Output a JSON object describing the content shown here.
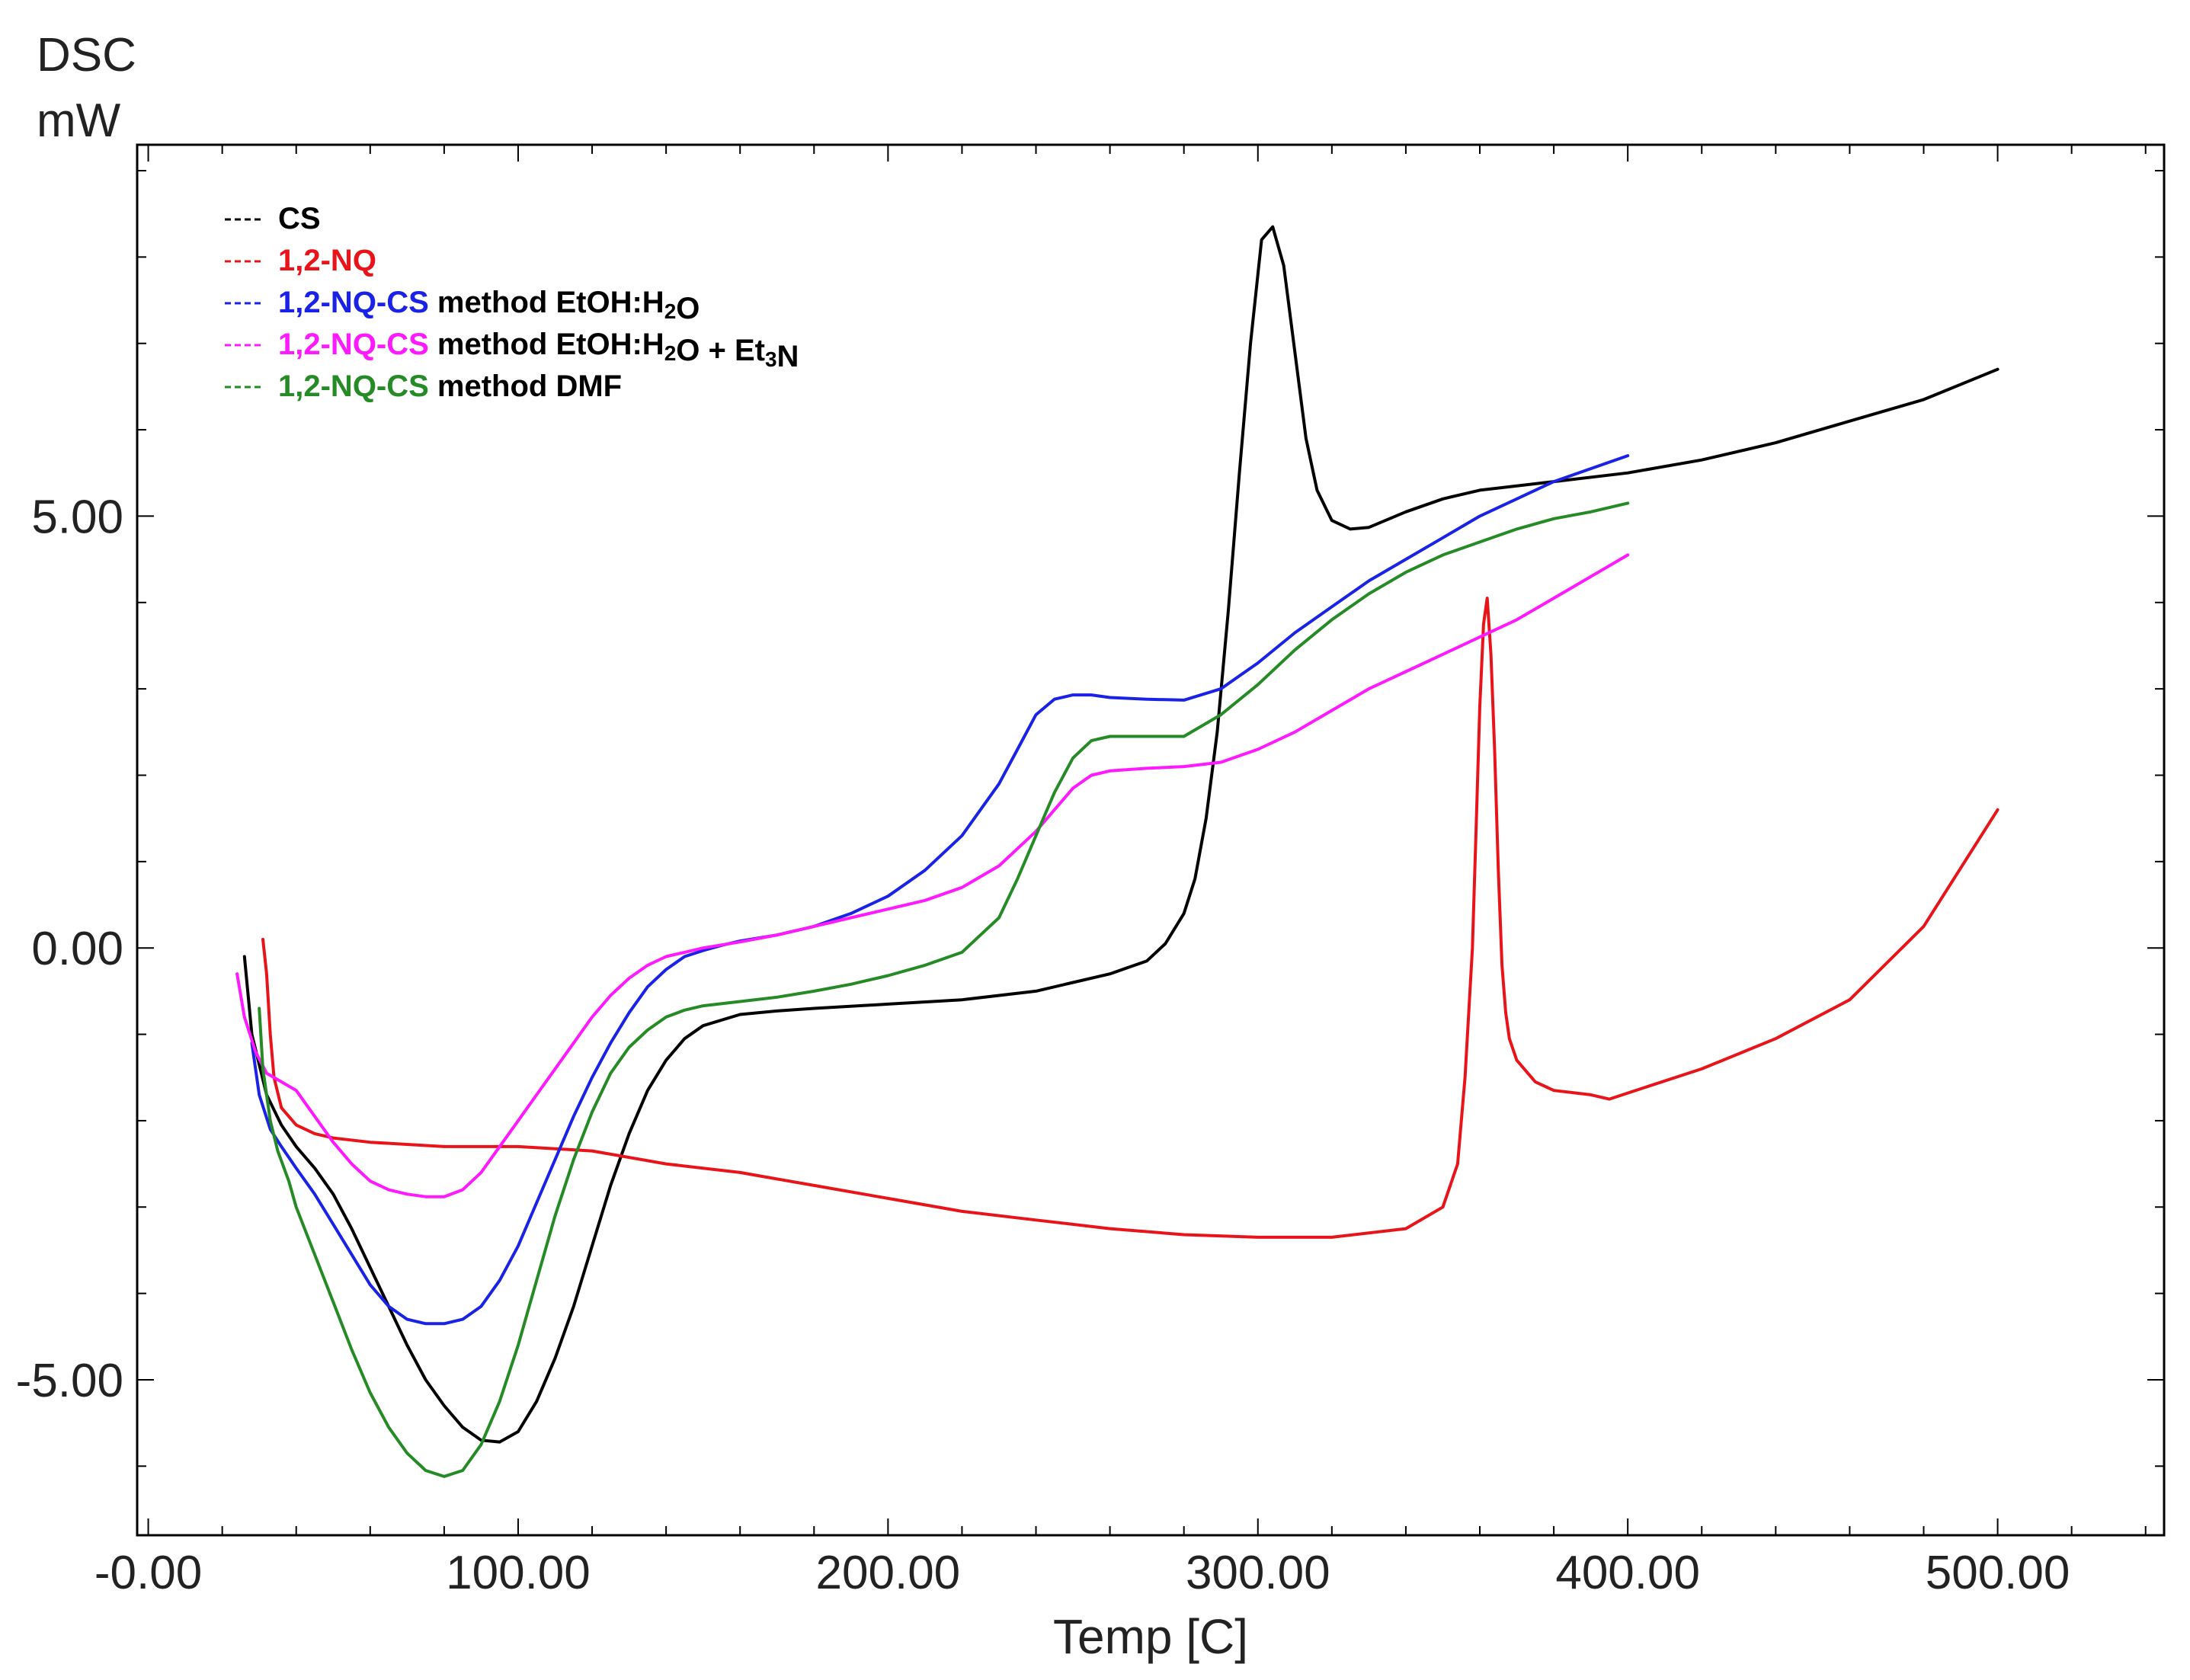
{
  "chart_data": {
    "type": "line",
    "ylabel_line1": "DSC",
    "ylabel_line2": "mW",
    "xlabel": "Temp  [C]",
    "xlim": [
      -3,
      545
    ],
    "ylim": [
      -6.8,
      9.3
    ],
    "xticks": [
      0,
      100,
      200,
      300,
      400,
      500
    ],
    "xtick_labels": [
      "-0.00",
      "100.00",
      "200.00",
      "300.00",
      "400.00",
      "500.00"
    ],
    "yticks": [
      -5,
      0,
      5
    ],
    "ytick_labels": [
      "-5.00",
      "0.00",
      "5.00"
    ],
    "legend_position": "top-left",
    "series": [
      {
        "name": "CS",
        "legend_parts": [
          {
            "text": "CS",
            "colored": true
          }
        ],
        "color": "#000000",
        "x": [
          26,
          28,
          32,
          36,
          40,
          45,
          50,
          55,
          60,
          65,
          70,
          75,
          80,
          85,
          90,
          95,
          100,
          105,
          110,
          115,
          120,
          125,
          130,
          135,
          140,
          145,
          150,
          160,
          170,
          180,
          200,
          220,
          240,
          250,
          260,
          270,
          275,
          280,
          283,
          286,
          289,
          292,
          295,
          298,
          301,
          304,
          307,
          310,
          313,
          316,
          320,
          325,
          330,
          340,
          350,
          360,
          380,
          400,
          420,
          440,
          460,
          480,
          500
        ],
        "y": [
          -0.1,
          -1.0,
          -1.7,
          -2.05,
          -2.3,
          -2.55,
          -2.85,
          -3.25,
          -3.7,
          -4.15,
          -4.6,
          -5.0,
          -5.3,
          -5.55,
          -5.7,
          -5.72,
          -5.6,
          -5.25,
          -4.75,
          -4.15,
          -3.45,
          -2.75,
          -2.15,
          -1.65,
          -1.3,
          -1.05,
          -0.9,
          -0.77,
          -0.73,
          -0.7,
          -0.65,
          -0.6,
          -0.5,
          -0.4,
          -0.3,
          -0.15,
          0.05,
          0.4,
          0.8,
          1.5,
          2.5,
          3.9,
          5.5,
          7.0,
          8.2,
          8.35,
          7.9,
          6.9,
          5.9,
          5.3,
          4.95,
          4.85,
          4.87,
          5.05,
          5.2,
          5.3,
          5.4,
          5.5,
          5.65,
          5.85,
          6.1,
          6.35,
          6.7
        ]
      },
      {
        "name": "1,2-NQ",
        "legend_parts": [
          {
            "text": "1,2-NQ",
            "colored": true
          }
        ],
        "color": "#e8141a",
        "x": [
          31,
          32,
          33,
          34,
          36,
          40,
          45,
          50,
          60,
          80,
          100,
          120,
          140,
          160,
          180,
          200,
          220,
          240,
          260,
          280,
          300,
          320,
          340,
          350,
          354,
          356,
          358,
          359,
          360,
          361,
          362,
          363,
          364,
          365,
          366,
          367,
          368,
          370,
          375,
          380,
          390,
          395,
          400,
          420,
          440,
          460,
          480,
          500
        ],
        "y": [
          0.1,
          -0.3,
          -1.0,
          -1.5,
          -1.85,
          -2.05,
          -2.15,
          -2.2,
          -2.25,
          -2.3,
          -2.3,
          -2.35,
          -2.5,
          -2.6,
          -2.75,
          -2.9,
          -3.05,
          -3.15,
          -3.25,
          -3.32,
          -3.35,
          -3.35,
          -3.25,
          -3.0,
          -2.5,
          -1.5,
          0.0,
          1.4,
          2.8,
          3.75,
          4.05,
          3.4,
          2.3,
          0.9,
          -0.2,
          -0.75,
          -1.05,
          -1.3,
          -1.55,
          -1.65,
          -1.7,
          -1.75,
          -1.68,
          -1.4,
          -1.05,
          -0.6,
          0.25,
          1.6
        ]
      },
      {
        "name": "1,2-NQ-CS method EtOH:H2O",
        "legend_parts": [
          {
            "text": "1,2-NQ-CS",
            "colored": true
          },
          {
            "text": " method EtOH:H",
            "colored": false
          },
          {
            "text": "2",
            "colored": false,
            "sub": true
          },
          {
            "text": "O",
            "colored": false
          }
        ],
        "color": "#1a22e6",
        "x": [
          28,
          30,
          33,
          36,
          40,
          45,
          50,
          55,
          60,
          65,
          70,
          75,
          80,
          85,
          90,
          95,
          100,
          105,
          110,
          115,
          120,
          125,
          130,
          135,
          140,
          145,
          150,
          155,
          160,
          170,
          180,
          190,
          200,
          210,
          220,
          230,
          235,
          240,
          245,
          250,
          255,
          260,
          270,
          280,
          290,
          300,
          310,
          320,
          330,
          340,
          350,
          360,
          370,
          380,
          390,
          400
        ],
        "y": [
          -1.1,
          -1.7,
          -2.1,
          -2.3,
          -2.55,
          -2.85,
          -3.2,
          -3.55,
          -3.9,
          -4.15,
          -4.3,
          -4.35,
          -4.35,
          -4.3,
          -4.15,
          -3.85,
          -3.45,
          -2.95,
          -2.45,
          -1.95,
          -1.5,
          -1.1,
          -0.75,
          -0.45,
          -0.25,
          -0.1,
          -0.03,
          0.03,
          0.08,
          0.15,
          0.25,
          0.4,
          0.6,
          0.9,
          1.3,
          1.9,
          2.3,
          2.7,
          2.88,
          2.93,
          2.93,
          2.9,
          2.88,
          2.87,
          3.0,
          3.3,
          3.65,
          3.95,
          4.25,
          4.5,
          4.75,
          5.0,
          5.2,
          5.4,
          5.55,
          5.7
        ]
      },
      {
        "name": "1,2-NQ-CS method EtOH:H2O + Et3N",
        "legend_parts": [
          {
            "text": "1,2-NQ-CS",
            "colored": true
          },
          {
            "text": " method EtOH:H",
            "colored": false
          },
          {
            "text": "2",
            "colored": false,
            "sub": true
          },
          {
            "text": "O + Et",
            "colored": false
          },
          {
            "text": "3",
            "colored": false,
            "sub": true
          },
          {
            "text": "N",
            "colored": false
          }
        ],
        "color": "#ff19ff",
        "x": [
          24,
          26,
          29,
          32,
          36,
          40,
          45,
          50,
          55,
          60,
          65,
          70,
          75,
          80,
          85,
          90,
          95,
          100,
          105,
          110,
          115,
          120,
          125,
          130,
          135,
          140,
          145,
          150,
          160,
          170,
          180,
          190,
          200,
          210,
          220,
          230,
          240,
          245,
          250,
          255,
          260,
          270,
          280,
          290,
          300,
          310,
          320,
          330,
          340,
          350,
          360,
          370,
          380,
          390,
          400
        ],
        "y": [
          -0.3,
          -0.8,
          -1.2,
          -1.45,
          -1.55,
          -1.65,
          -1.95,
          -2.25,
          -2.5,
          -2.7,
          -2.8,
          -2.85,
          -2.88,
          -2.88,
          -2.8,
          -2.6,
          -2.3,
          -2.0,
          -1.7,
          -1.4,
          -1.1,
          -0.8,
          -0.55,
          -0.35,
          -0.2,
          -0.1,
          -0.05,
          0.0,
          0.07,
          0.15,
          0.25,
          0.35,
          0.45,
          0.55,
          0.7,
          0.95,
          1.35,
          1.6,
          1.85,
          2.0,
          2.05,
          2.08,
          2.1,
          2.15,
          2.3,
          2.5,
          2.75,
          3.0,
          3.2,
          3.4,
          3.6,
          3.8,
          4.05,
          4.3,
          4.55
        ]
      },
      {
        "name": "1,2-NQ-CS method DMF",
        "legend_parts": [
          {
            "text": "1,2-NQ-CS",
            "colored": true
          },
          {
            "text": " method DMF",
            "colored": false
          }
        ],
        "color": "#268a26",
        "x": [
          30,
          31,
          33,
          35,
          38,
          40,
          45,
          50,
          55,
          60,
          65,
          70,
          75,
          80,
          85,
          90,
          95,
          100,
          105,
          110,
          115,
          120,
          125,
          130,
          135,
          140,
          145,
          150,
          160,
          170,
          180,
          190,
          200,
          210,
          220,
          230,
          235,
          240,
          245,
          250,
          255,
          260,
          270,
          280,
          290,
          300,
          310,
          320,
          330,
          340,
          350,
          360,
          370,
          380,
          390,
          400
        ],
        "y": [
          -0.7,
          -1.4,
          -2.0,
          -2.35,
          -2.7,
          -3.0,
          -3.55,
          -4.1,
          -4.65,
          -5.15,
          -5.55,
          -5.85,
          -6.05,
          -6.12,
          -6.05,
          -5.75,
          -5.25,
          -4.6,
          -3.85,
          -3.1,
          -2.45,
          -1.9,
          -1.45,
          -1.15,
          -0.95,
          -0.8,
          -0.72,
          -0.67,
          -0.62,
          -0.57,
          -0.5,
          -0.42,
          -0.32,
          -0.2,
          -0.05,
          0.35,
          0.8,
          1.3,
          1.8,
          2.2,
          2.4,
          2.45,
          2.45,
          2.45,
          2.7,
          3.05,
          3.45,
          3.8,
          4.1,
          4.35,
          4.55,
          4.7,
          4.85,
          4.97,
          5.05,
          5.15
        ]
      }
    ]
  }
}
